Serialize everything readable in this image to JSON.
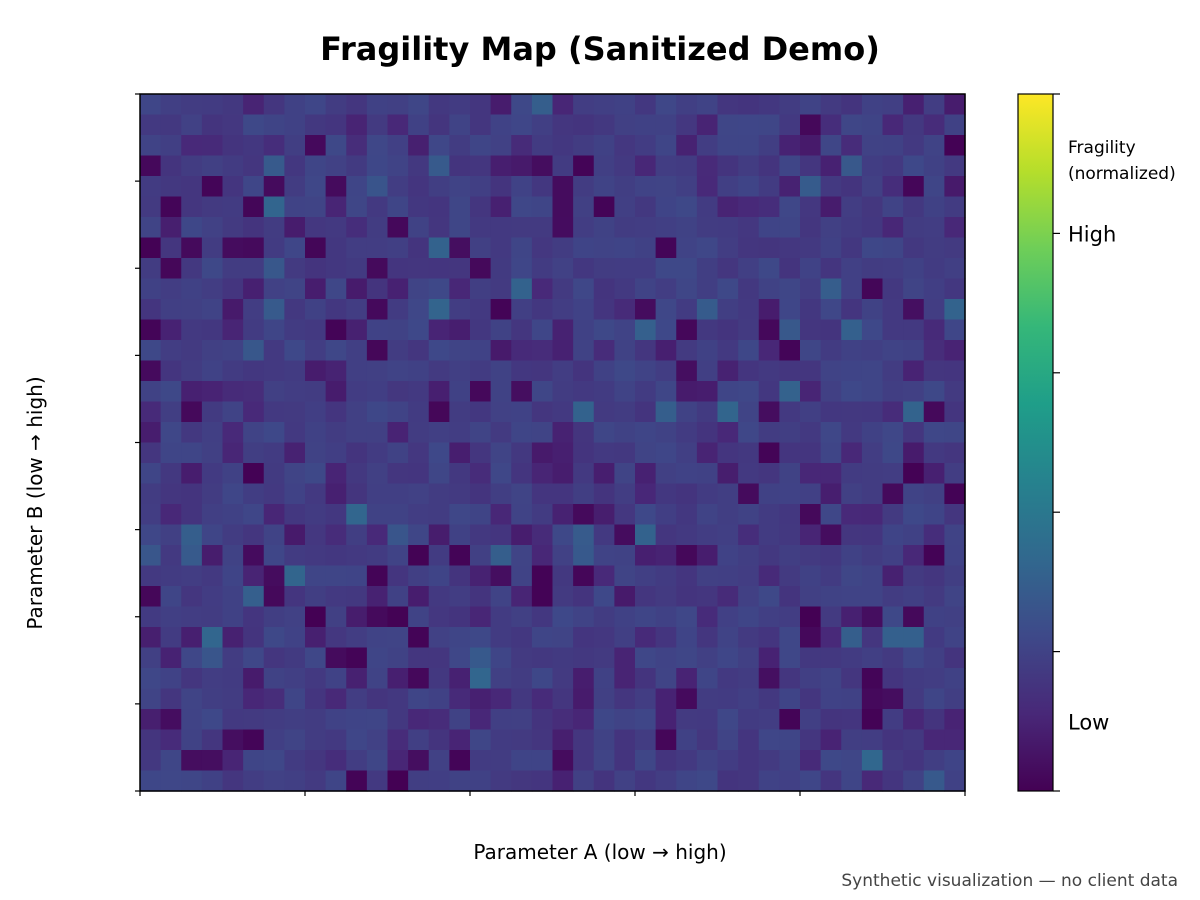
{
  "chart_data": {
    "type": "heatmap",
    "title": "Fragility Map (Sanitized Demo)",
    "xlabel": "Parameter A (low → high)",
    "ylabel": "Parameter B (low → high)",
    "xlim": [
      0,
      1
    ],
    "ylim": [
      0,
      1
    ],
    "grid": false,
    "grid_shape": {
      "rows": 34,
      "cols": 40
    },
    "x_tick_count": 6,
    "y_tick_count": 9,
    "colorbar": {
      "title_lines": [
        "Fragility",
        "(normalized)"
      ],
      "range": [
        0,
        1
      ],
      "tick_labels": [
        {
          "value": 0.1,
          "label": "Low"
        },
        {
          "value": 0.8,
          "label": "High"
        }
      ],
      "tick_values": [
        0,
        0.2,
        0.4,
        0.6,
        0.8,
        1.0
      ],
      "colormap": [
        "#440154",
        "#482878",
        "#3e4989",
        "#31688e",
        "#26828e",
        "#1f9e89",
        "#35b779",
        "#6ece58",
        "#b5de2b",
        "#fde725"
      ]
    },
    "values_note": "Mostly uniform low values (~0.15–0.22) with scattered darker (~0.0–0.1) cells and a few slightly brighter (~0.3) cells."
  },
  "footnote": "Synthetic visualization — no client data"
}
